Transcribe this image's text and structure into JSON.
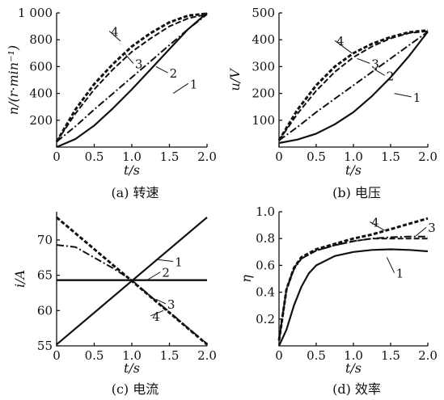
{
  "chart_data": [
    {
      "id": "a",
      "type": "line",
      "caption": "(a) 转速",
      "xlabel": "t/s",
      "ylabel": "n/(r·min⁻¹)",
      "xlim": [
        0,
        2.0
      ],
      "ylim": [
        0,
        1000
      ],
      "xticks": [
        "0",
        "0.5",
        "1.0",
        "1.5",
        "2.0"
      ],
      "yticks": [
        "200",
        "400",
        "600",
        "800",
        "1 000"
      ],
      "series": [
        {
          "name": "1",
          "style": "solid",
          "x": [
            0,
            0.25,
            0.5,
            0.75,
            1.0,
            1.25,
            1.5,
            1.75,
            2.0
          ],
          "y": [
            0,
            60,
            160,
            290,
            430,
            580,
            730,
            880,
            1000
          ]
        },
        {
          "name": "2",
          "style": "dashdot",
          "x": [
            0,
            0.25,
            0.5,
            0.75,
            1.0,
            1.25,
            1.5,
            1.75,
            2.0
          ],
          "y": [
            40,
            155,
            280,
            400,
            520,
            640,
            760,
            880,
            990
          ]
        },
        {
          "name": "3",
          "style": "dashed",
          "x": [
            0,
            0.25,
            0.5,
            0.75,
            1.0,
            1.25,
            1.5,
            1.75,
            2.0
          ],
          "y": [
            40,
            250,
            430,
            580,
            710,
            810,
            900,
            960,
            990
          ]
        },
        {
          "name": "4",
          "style": "dashed-bold",
          "x": [
            0,
            0.25,
            0.5,
            0.75,
            1.0,
            1.25,
            1.5,
            1.75,
            2.0
          ],
          "y": [
            40,
            280,
            470,
            620,
            750,
            850,
            930,
            980,
            995
          ]
        }
      ],
      "labels": [
        {
          "text": "1",
          "at": [
            1.75,
            450
          ],
          "to": [
            1.55,
            400
          ]
        },
        {
          "text": "2",
          "at": [
            1.48,
            530
          ],
          "to": [
            1.32,
            600
          ]
        },
        {
          "text": "3",
          "at": [
            1.02,
            600
          ],
          "to": [
            0.9,
            700
          ]
        },
        {
          "text": "4",
          "at": [
            0.7,
            840
          ],
          "to": [
            0.85,
            790
          ]
        }
      ]
    },
    {
      "id": "b",
      "type": "line",
      "caption": "(b) 电压",
      "xlabel": "t/s",
      "ylabel": "u/V",
      "xlim": [
        0,
        2.0
      ],
      "ylim": [
        0,
        500
      ],
      "xticks": [
        "0",
        "0.5",
        "1.0",
        "1.5",
        "2.0"
      ],
      "yticks": [
        "100",
        "200",
        "300",
        "400",
        "500"
      ],
      "series": [
        {
          "name": "1",
          "style": "solid",
          "x": [
            0,
            0.25,
            0.5,
            0.75,
            1.0,
            1.25,
            1.5,
            1.75,
            2.0
          ],
          "y": [
            15,
            28,
            50,
            85,
            130,
            190,
            260,
            340,
            430
          ]
        },
        {
          "name": "2",
          "style": "dashdot",
          "x": [
            0,
            0.25,
            0.5,
            0.75,
            1.0,
            1.25,
            1.5,
            1.75,
            2.0
          ],
          "y": [
            25,
            75,
            130,
            180,
            230,
            280,
            330,
            380,
            430
          ]
        },
        {
          "name": "3",
          "style": "dashed",
          "x": [
            0,
            0.25,
            0.5,
            0.75,
            1.0,
            1.25,
            1.5,
            1.75,
            2.0
          ],
          "y": [
            25,
            125,
            210,
            280,
            335,
            375,
            405,
            425,
            432
          ]
        },
        {
          "name": "4",
          "style": "dashed-bold",
          "x": [
            0,
            0.25,
            0.5,
            0.75,
            1.0,
            1.25,
            1.5,
            1.75,
            2.0
          ],
          "y": [
            25,
            140,
            230,
            300,
            350,
            385,
            410,
            428,
            435
          ]
        }
      ],
      "labels": [
        {
          "text": "1",
          "at": [
            1.78,
            175
          ],
          "to": [
            1.55,
            200
          ]
        },
        {
          "text": "2",
          "at": [
            1.42,
            255
          ],
          "to": [
            1.28,
            290
          ]
        },
        {
          "text": "3",
          "at": [
            1.22,
            300
          ],
          "to": [
            1.05,
            330
          ]
        },
        {
          "text": "4",
          "at": [
            0.75,
            385
          ],
          "to": [
            0.98,
            350
          ]
        }
      ]
    },
    {
      "id": "c",
      "type": "line",
      "caption": "(c) 电流",
      "xlabel": "t/s",
      "ylabel": "i/A",
      "xlim": [
        0,
        2.0
      ],
      "ylim": [
        55,
        74
      ],
      "xticks": [
        "0",
        "0.5",
        "1.0",
        "1.5",
        "2.0"
      ],
      "yticks": [
        "55",
        "60",
        "65",
        "70"
      ],
      "series": [
        {
          "name": "1",
          "style": "solid",
          "x": [
            0,
            2.0
          ],
          "y": [
            55.2,
            73.2
          ]
        },
        {
          "name": "2",
          "style": "solid-thick",
          "x": [
            0,
            2.0
          ],
          "y": [
            64.3,
            64.3
          ]
        },
        {
          "name": "3",
          "style": "dashdot",
          "x": [
            0,
            0.25,
            0.5,
            0.75,
            1.0,
            1.25,
            1.5,
            1.75,
            2.0
          ],
          "y": [
            69.3,
            69.0,
            67.5,
            66.0,
            64.3,
            62.0,
            59.8,
            57.5,
            55.3
          ]
        },
        {
          "name": "4",
          "style": "dashed-bold",
          "x": [
            0,
            2.0
          ],
          "y": [
            73.2,
            55.2
          ]
        }
      ],
      "labels": [
        {
          "text": "1",
          "at": [
            1.55,
            66.5
          ],
          "to": [
            1.35,
            67.2
          ]
        },
        {
          "text": "2",
          "at": [
            1.38,
            65.0
          ],
          "to": [
            1.2,
            64.3
          ]
        },
        {
          "text": "3",
          "at": [
            1.45,
            60.5
          ],
          "to": [
            1.32,
            61.6
          ]
        },
        {
          "text": "4",
          "at": [
            1.25,
            58.8
          ],
          "to": [
            1.42,
            60.0
          ]
        }
      ]
    },
    {
      "id": "d",
      "type": "line",
      "caption": "(d) 效率",
      "xlabel": "t/s",
      "ylabel": "η",
      "xlim": [
        0,
        2.0
      ],
      "ylim": [
        0,
        1.0
      ],
      "xticks": [
        "0",
        "0.5",
        "1.0",
        "1.5",
        "2.0"
      ],
      "yticks": [
        "0.2",
        "0.4",
        "0.6",
        "0.8",
        "1.0"
      ],
      "series": [
        {
          "name": "1",
          "style": "solid",
          "x": [
            0,
            0.1,
            0.2,
            0.3,
            0.4,
            0.5,
            0.75,
            1.0,
            1.25,
            1.5,
            1.75,
            2.0
          ],
          "y": [
            0,
            0.12,
            0.3,
            0.44,
            0.54,
            0.6,
            0.67,
            0.7,
            0.715,
            0.72,
            0.715,
            0.705
          ]
        },
        {
          "name": "2",
          "style": "dashdot",
          "x": [
            0,
            0.1,
            0.2,
            0.3,
            0.5,
            0.75,
            1.0,
            1.25,
            1.5,
            1.75,
            2.0
          ],
          "y": [
            0.04,
            0.42,
            0.57,
            0.65,
            0.71,
            0.75,
            0.78,
            0.8,
            0.81,
            0.815,
            0.815
          ]
        },
        {
          "name": "3",
          "style": "dashed",
          "x": [
            0,
            0.1,
            0.2,
            0.3,
            0.5,
            0.75,
            1.0,
            1.25,
            1.5,
            1.75,
            2.0
          ],
          "y": [
            0.04,
            0.42,
            0.58,
            0.65,
            0.71,
            0.75,
            0.78,
            0.8,
            0.8,
            0.8,
            0.8
          ]
        },
        {
          "name": "4",
          "style": "dashed-bold",
          "x": [
            0,
            0.1,
            0.2,
            0.3,
            0.5,
            0.75,
            1.0,
            1.25,
            1.5,
            1.75,
            2.0
          ],
          "y": [
            0.04,
            0.42,
            0.58,
            0.66,
            0.72,
            0.76,
            0.8,
            0.83,
            0.87,
            0.91,
            0.95
          ]
        }
      ],
      "labels": [
        {
          "text": "1",
          "at": [
            1.55,
            0.52
          ],
          "to": [
            1.45,
            0.66
          ]
        },
        {
          "text": "3",
          "at": [
            1.98,
            0.86
          ],
          "to": [
            1.84,
            0.82
          ]
        },
        {
          "text": "4",
          "at": [
            1.22,
            0.9
          ],
          "to": [
            1.42,
            0.86
          ]
        }
      ]
    }
  ]
}
